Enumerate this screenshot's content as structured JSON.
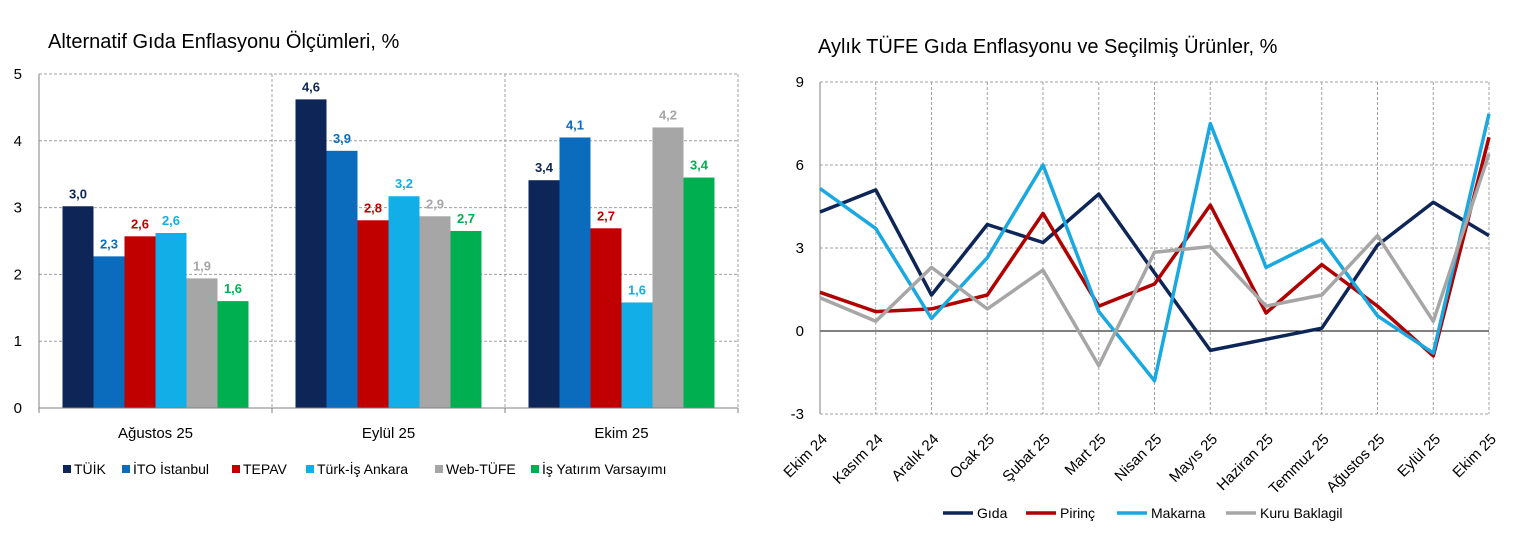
{
  "chart_data": [
    {
      "type": "bar",
      "title": "Alternatif Gıda Enflasyonu Ölçümleri, %",
      "xlabel": "",
      "ylabel": "",
      "ylim": [
        0,
        5
      ],
      "yticks": [
        "0",
        "1",
        "2",
        "3",
        "4",
        "5"
      ],
      "grid": true,
      "legend_position": "bottom",
      "categories": [
        "Ağustos 25",
        "Eylül 25",
        "Ekim 25"
      ],
      "series": [
        {
          "name": "TÜİK",
          "color": "#0d2557",
          "values": [
            3.02,
            4.62,
            3.41
          ],
          "labels": [
            "3,0",
            "4,6",
            "3,4"
          ]
        },
        {
          "name": "İTO İstanbul",
          "color": "#0b6cbd",
          "values": [
            2.27,
            3.85,
            4.05
          ],
          "labels": [
            "2,3",
            "3,9",
            "4,1"
          ]
        },
        {
          "name": "TEPAV",
          "color": "#c00000",
          "values": [
            2.57,
            2.81,
            2.69
          ],
          "labels": [
            "2,6",
            "2,8",
            "2,7"
          ]
        },
        {
          "name": "Türk-İş Ankara",
          "color": "#11aee8",
          "values": [
            2.62,
            3.17,
            1.58
          ],
          "labels": [
            "2,6",
            "3,2",
            "1,6"
          ]
        },
        {
          "name": "Web-TÜFE",
          "color": "#a6a6a6",
          "values": [
            1.94,
            2.87,
            4.2
          ],
          "labels": [
            "1,9",
            "2,9",
            "4,2"
          ]
        },
        {
          "name": "İş Yatırım Varsayımı",
          "color": "#00b050",
          "values": [
            1.6,
            2.65,
            3.45
          ],
          "labels": [
            "1,6",
            "2,7",
            "3,4"
          ]
        }
      ]
    },
    {
      "type": "line",
      "title": "Aylık TÜFE Gıda Enflasyonu ve Seçilmiş Ürünler, %",
      "xlabel": "",
      "ylabel": "",
      "ylim": [
        -3,
        9
      ],
      "yticks": [
        "-3",
        "0",
        "3",
        "6",
        "9"
      ],
      "grid": true,
      "legend_position": "bottom",
      "x": [
        "Ekim 24",
        "Kasım 24",
        "Aralık 24",
        "Ocak 25",
        "Şubat 25",
        "Mart 25",
        "Nisan 25",
        "Mayıs 25",
        "Haziran 25",
        "Temmuz 25",
        "Ağustos 25",
        "Eylül 25",
        "Ekim 25"
      ],
      "series": [
        {
          "name": "Gıda",
          "color": "#0d2557",
          "values": [
            4.3,
            5.1,
            1.3,
            3.85,
            3.2,
            4.95,
            2.1,
            -0.7,
            -0.3,
            0.1,
            3.1,
            4.65,
            3.45
          ]
        },
        {
          "name": "Pirinç",
          "color": "#b00000",
          "values": [
            1.4,
            0.7,
            0.8,
            1.3,
            4.25,
            0.9,
            1.7,
            4.55,
            0.65,
            2.4,
            0.9,
            -0.9,
            7.0
          ]
        },
        {
          "name": "Makarna",
          "color": "#1aa8e0",
          "values": [
            5.15,
            3.7,
            0.45,
            2.65,
            6.0,
            0.7,
            -1.8,
            7.5,
            2.3,
            3.3,
            0.55,
            -0.8,
            7.85
          ]
        },
        {
          "name": "Kuru Baklagil",
          "color": "#a6a6a6",
          "values": [
            1.2,
            0.35,
            2.3,
            0.8,
            2.2,
            -1.25,
            2.85,
            3.05,
            0.9,
            1.3,
            3.45,
            0.35,
            6.4
          ]
        }
      ]
    }
  ]
}
